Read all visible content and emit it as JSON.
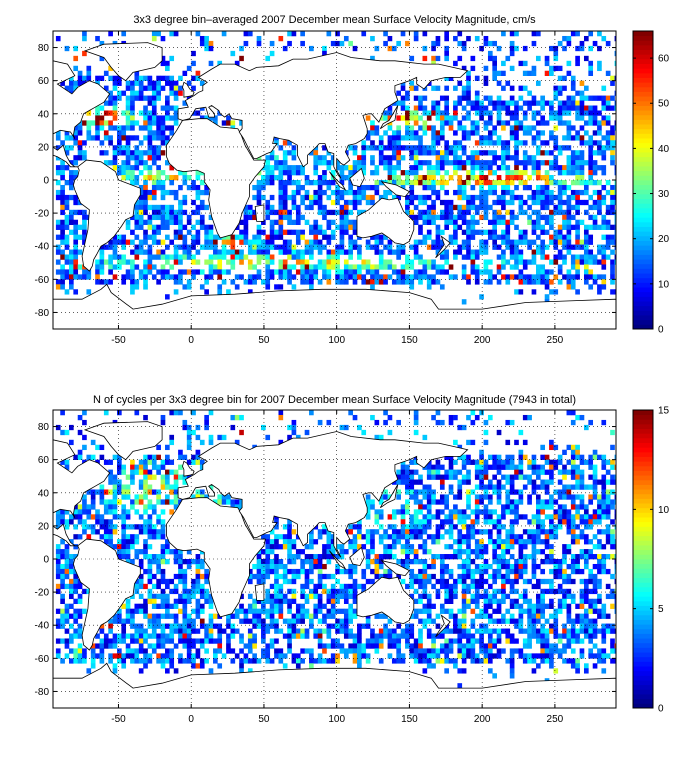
{
  "figure": {
    "background": "#ffffff"
  },
  "chart_data": [
    {
      "type": "heatmap",
      "title": "3x3 degree bin–averaged 2007 December mean Surface Velocity Magnitude, cm/s",
      "xlabel": "",
      "ylabel": "",
      "xlim": [
        -95,
        292
      ],
      "ylim": [
        -90,
        90
      ],
      "xticks": [
        -50,
        0,
        50,
        100,
        150,
        200,
        250
      ],
      "yticks": [
        -80,
        -60,
        -40,
        -20,
        0,
        20,
        40,
        60,
        80
      ],
      "grid": true,
      "grid_style": "dotted",
      "bin_size_deg": 3,
      "colormap": "jet",
      "colorbar": {
        "range": [
          0,
          66
        ],
        "ticks": [
          0,
          10,
          20,
          30,
          40,
          50,
          60
        ]
      },
      "value_profile": "mostly 5-25 cm/s; high (40-66) along equatorial band, Gulf Stream, Kuroshio, Agulhas and Antarctic Circumpolar Current",
      "seed": 11
    },
    {
      "type": "heatmap",
      "title": "N of cycles per 3x3 degree bin for 2007 December mean Surface Velocity Magnitude (7943 in total)",
      "xlabel": "",
      "ylabel": "",
      "xlim": [
        -95,
        292
      ],
      "ylim": [
        -90,
        90
      ],
      "xticks": [
        -50,
        0,
        50,
        100,
        150,
        200,
        250
      ],
      "yticks": [
        -80,
        -60,
        -40,
        -20,
        0,
        20,
        40,
        60,
        80
      ],
      "grid": true,
      "grid_style": "dotted",
      "bin_size_deg": 3,
      "colormap": "jet",
      "colorbar": {
        "range": [
          0,
          15
        ],
        "ticks": [
          0,
          5,
          10,
          15
        ]
      },
      "total_cycles": 7943,
      "value_profile": "mostly 1-5 cycles per bin; higher counts (8-15) in North Atlantic and Mediterranean",
      "seed": 29
    }
  ]
}
